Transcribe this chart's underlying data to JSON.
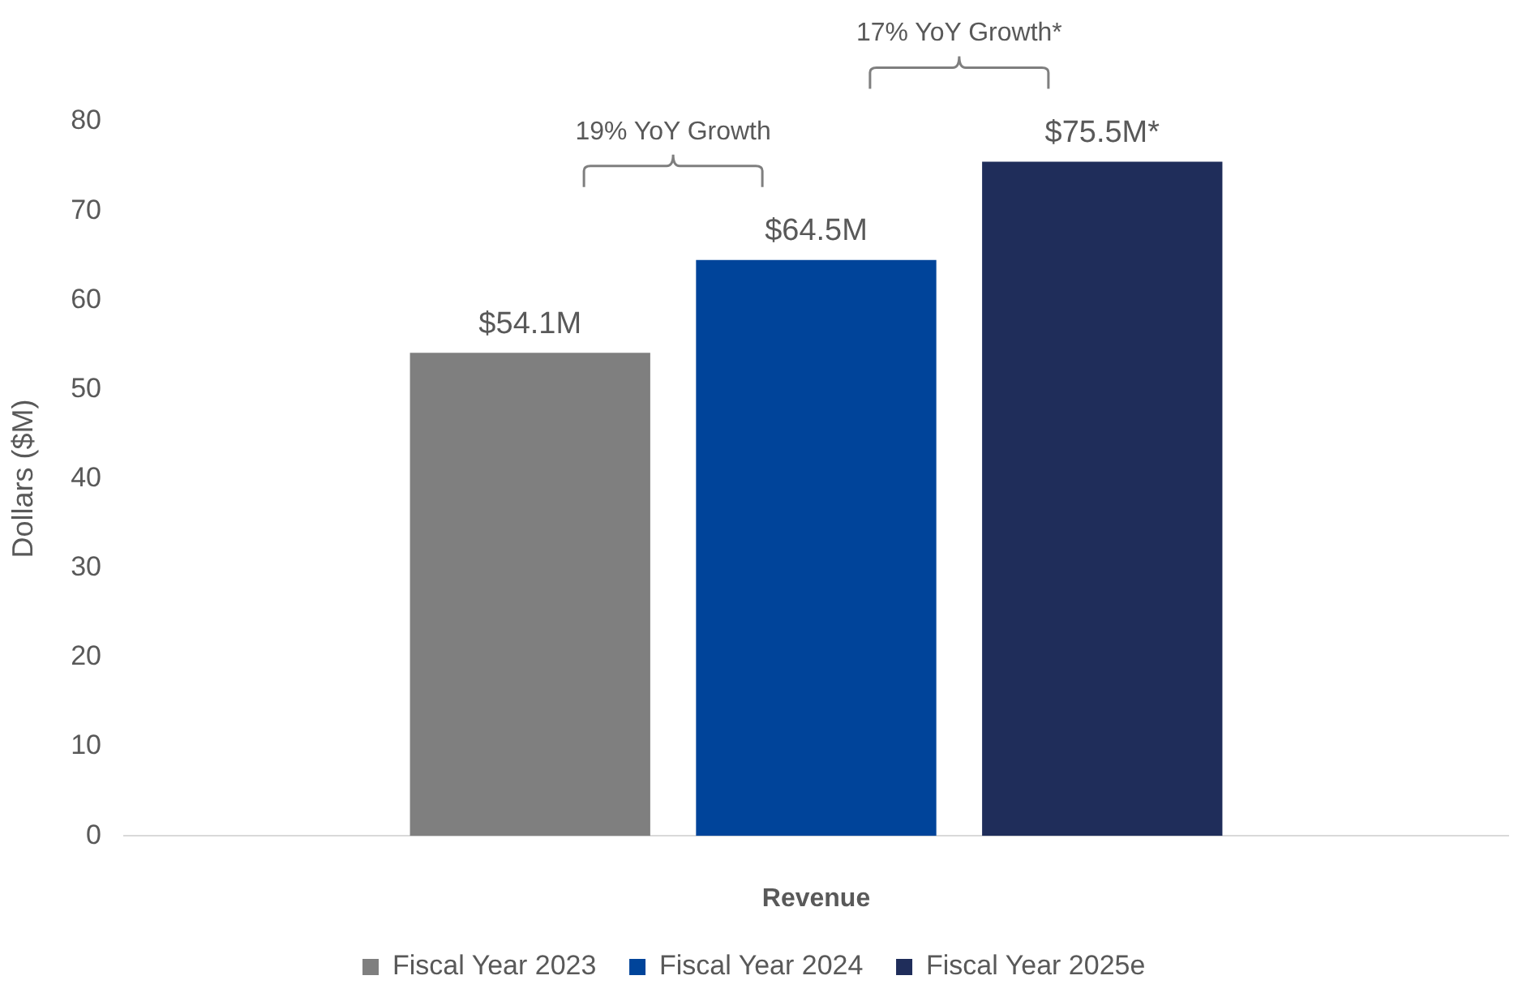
{
  "chart_data": {
    "type": "bar",
    "xlabel": "Revenue",
    "ylabel": "Dollars ($M)",
    "categories": [
      null
    ],
    "series": [
      {
        "name": "Fiscal Year 2023",
        "color": "#7f7f7f",
        "values": [
          54.1
        ],
        "value_labels": [
          "$54.1M"
        ]
      },
      {
        "name": "Fiscal Year 2024",
        "color": "#00449a",
        "values": [
          64.5
        ],
        "value_labels": [
          "$64.5M"
        ]
      },
      {
        "name": "Fiscal Year 2025e",
        "color": "#1f2d5a",
        "values": [
          75.5
        ],
        "value_labels": [
          "$75.5M*"
        ]
      }
    ],
    "ylim": [
      0,
      80
    ],
    "yticks": [
      0,
      10,
      20,
      30,
      40,
      50,
      60,
      70,
      80
    ],
    "grid": false,
    "legend": "bottom",
    "annotations": [
      "19% YoY Growth",
      "17% YoY Growth*"
    ]
  }
}
